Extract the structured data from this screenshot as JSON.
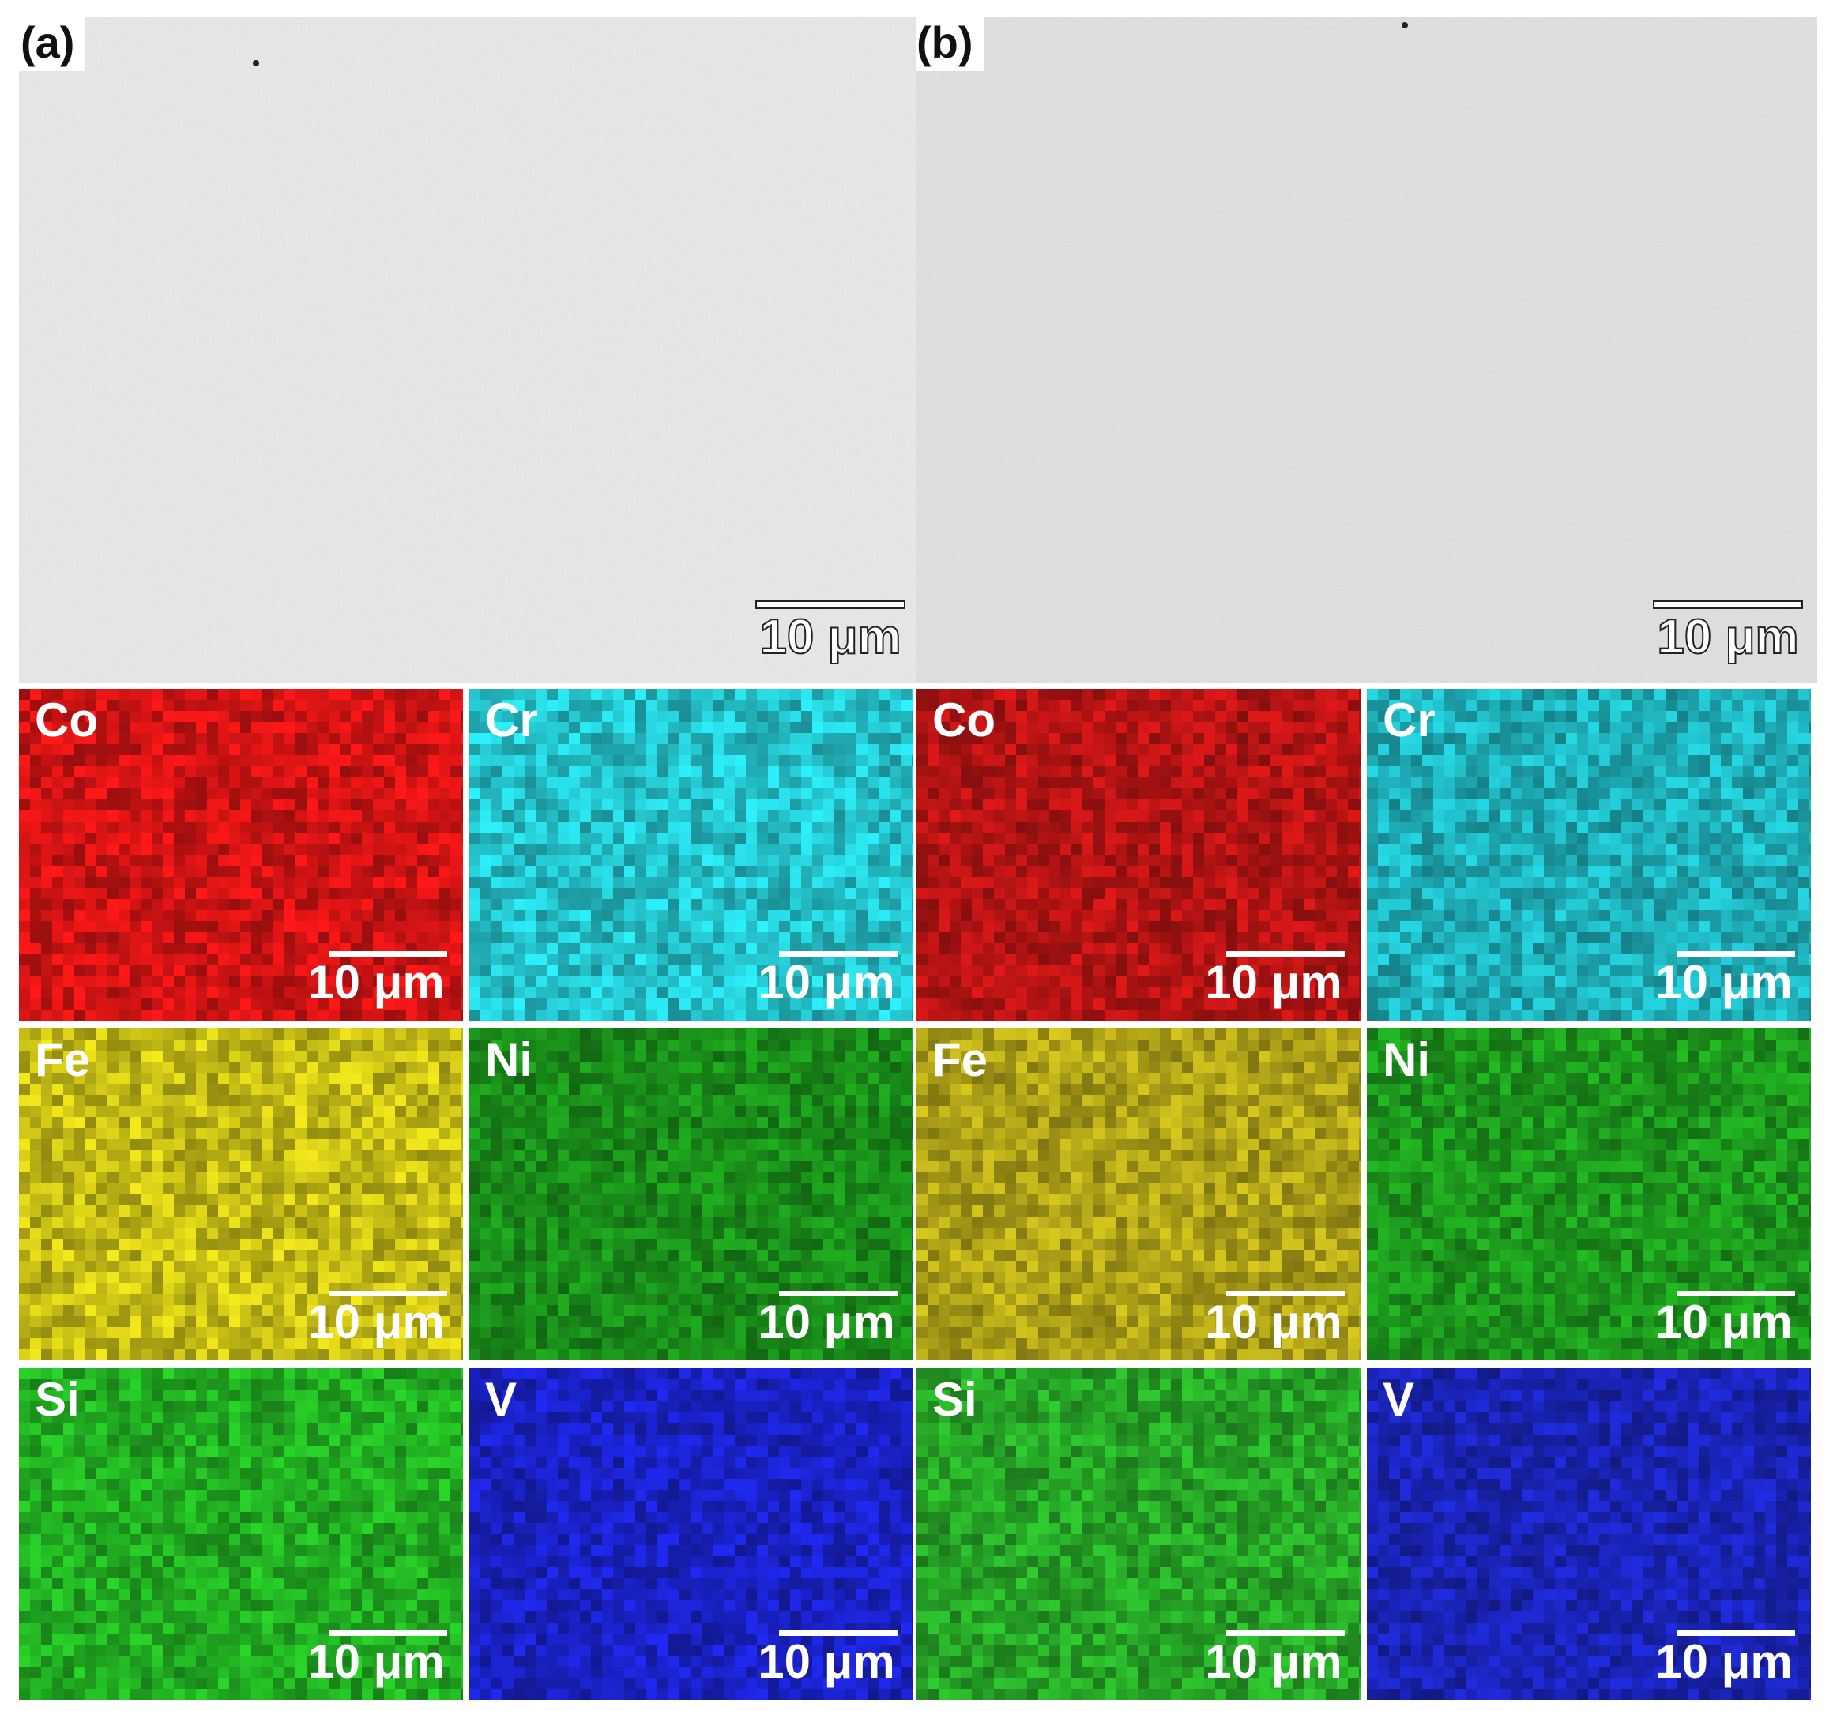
{
  "panels": [
    {
      "label": "(a)",
      "scale_label": "10 μm",
      "maps": [
        {
          "element": "Co",
          "color": "#d41414",
          "scale_label": "10 μm"
        },
        {
          "element": "Cr",
          "color": "#25c6cf",
          "scale_label": "10 μm"
        },
        {
          "element": "Fe",
          "color": "#c9c016",
          "scale_label": "10 μm"
        },
        {
          "element": "Ni",
          "color": "#1a8f1a",
          "scale_label": "10 μm"
        },
        {
          "element": "Si",
          "color": "#22b022",
          "scale_label": "10 μm"
        },
        {
          "element": "V",
          "color": "#1a22c8",
          "scale_label": "10 μm"
        }
      ]
    },
    {
      "label": "(b)",
      "scale_label": "10 μm",
      "maps": [
        {
          "element": "Co",
          "color": "#b81414",
          "scale_label": "10 μm"
        },
        {
          "element": "Cr",
          "color": "#1fb2bc",
          "scale_label": "10 μm"
        },
        {
          "element": "Fe",
          "color": "#b2a518",
          "scale_label": "10 μm"
        },
        {
          "element": "Ni",
          "color": "#1d9a1d",
          "scale_label": "10 μm"
        },
        {
          "element": "Si",
          "color": "#27a827",
          "scale_label": "10 μm"
        },
        {
          "element": "V",
          "color": "#1a24b8",
          "scale_label": "10 μm"
        }
      ]
    }
  ]
}
